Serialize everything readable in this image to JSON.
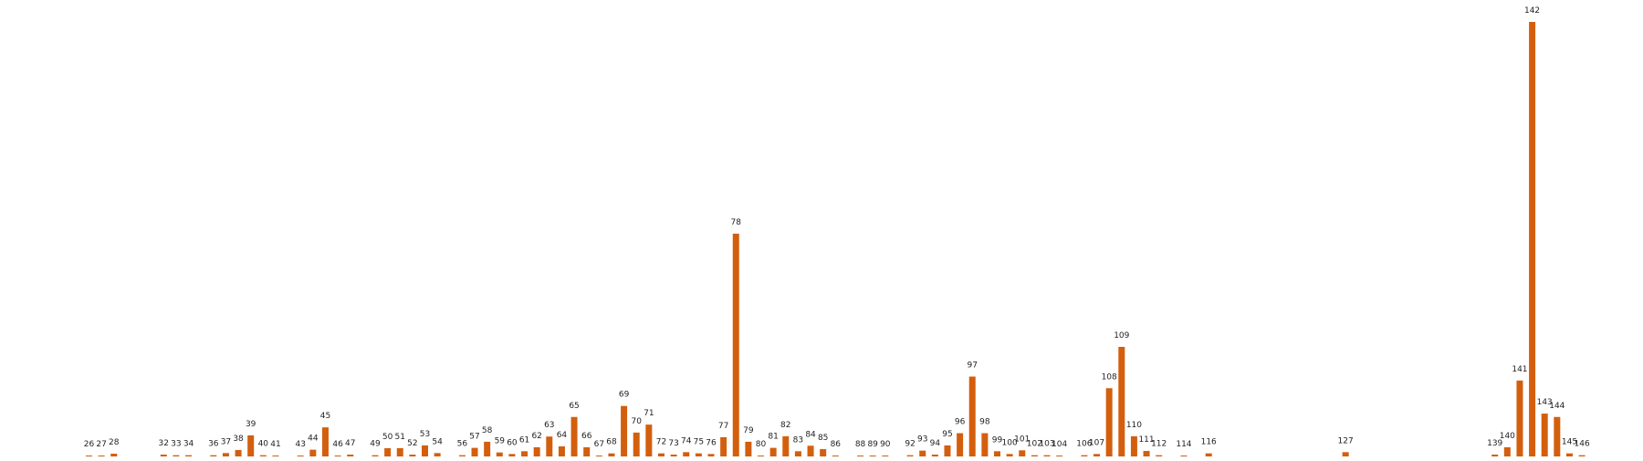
{
  "chart_data": {
    "type": "bar",
    "title": "",
    "xlabel": "",
    "ylabel": "",
    "axes_visible": false,
    "grid": false,
    "bar_color": "#d35f0e",
    "data_labels": "category",
    "ylim": [
      0,
      142
    ],
    "categories": [
      "26",
      "27",
      "28",
      "32",
      "33",
      "34",
      "36",
      "37",
      "38",
      "39",
      "40",
      "41",
      "43",
      "44",
      "45",
      "46",
      "47",
      "49",
      "50",
      "51",
      "52",
      "53",
      "54",
      "56",
      "57",
      "58",
      "59",
      "60",
      "61",
      "62",
      "63",
      "64",
      "65",
      "66",
      "67",
      "68",
      "69",
      "70",
      "71",
      "72",
      "73",
      "74",
      "75",
      "76",
      "77",
      "78",
      "79",
      "80",
      "81",
      "82",
      "83",
      "84",
      "85",
      "86",
      "88",
      "89",
      "90",
      "92",
      "93",
      "94",
      "95",
      "96",
      "97",
      "98",
      "99",
      "100",
      "101",
      "102",
      "103",
      "104",
      "106",
      "107",
      "108",
      "109",
      "110",
      "111",
      "112",
      "114",
      "116",
      "127",
      "139",
      "140",
      "141",
      "142",
      "143",
      "144",
      "145",
      "146"
    ],
    "x": [
      26,
      27,
      28,
      32,
      33,
      34,
      36,
      37,
      38,
      39,
      40,
      41,
      43,
      44,
      45,
      46,
      47,
      49,
      50,
      51,
      52,
      53,
      54,
      56,
      57,
      58,
      59,
      60,
      61,
      62,
      63,
      64,
      65,
      66,
      67,
      68,
      69,
      70,
      71,
      72,
      73,
      74,
      75,
      76,
      77,
      78,
      79,
      80,
      81,
      82,
      83,
      84,
      85,
      86,
      88,
      89,
      90,
      92,
      93,
      94,
      95,
      96,
      97,
      98,
      99,
      100,
      101,
      102,
      103,
      104,
      106,
      107,
      108,
      109,
      110,
      111,
      112,
      114,
      116,
      127,
      139,
      140,
      141,
      142,
      143,
      144,
      145,
      146
    ],
    "values": [
      0.3,
      0.3,
      0.9,
      0.6,
      0.4,
      0.4,
      0.4,
      1.1,
      2.1,
      6.9,
      0.4,
      0.2,
      0.3,
      2.2,
      9.5,
      0.3,
      0.6,
      0.4,
      2.7,
      2.7,
      0.6,
      3.6,
      1.1,
      0.4,
      2.8,
      4.8,
      1.3,
      0.8,
      1.7,
      3.0,
      6.5,
      3.3,
      12.9,
      3.0,
      0.2,
      1.0,
      16.5,
      7.8,
      10.4,
      1.0,
      0.6,
      1.4,
      1.0,
      0.8,
      6.3,
      72.8,
      4.8,
      0.2,
      2.8,
      6.6,
      1.7,
      3.5,
      2.4,
      0.2,
      0.3,
      0.1,
      0.1,
      0.4,
      1.9,
      0.6,
      3.6,
      7.6,
      26.1,
      7.6,
      1.7,
      0.8,
      2.0,
      0.4,
      0.4,
      0.1,
      0.4,
      0.8,
      22.3,
      35.8,
      6.6,
      1.8,
      0.4,
      0.2,
      1.0,
      1.4,
      0.6,
      3.0,
      24.8,
      142.0,
      14.0,
      12.9,
      1.0,
      0.4
    ]
  }
}
